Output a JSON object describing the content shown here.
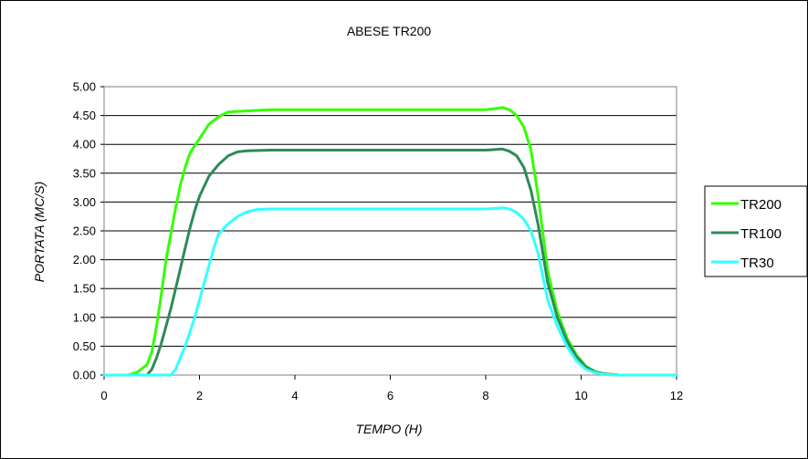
{
  "chart_data": {
    "type": "line",
    "title": "ABESE TR200",
    "xlabel": "TEMPO (H)",
    "ylabel": "PORTATA (MC/S)",
    "xlim": [
      0,
      12
    ],
    "ylim": [
      0,
      5
    ],
    "x_ticks": [
      "0",
      "2",
      "4",
      "6",
      "8",
      "10",
      "12"
    ],
    "y_ticks": [
      "0.00",
      "0.50",
      "1.00",
      "1.50",
      "2.00",
      "2.50",
      "3.00",
      "3.50",
      "4.00",
      "4.50",
      "5.00"
    ],
    "grid": "horizontal",
    "legend_position": "right",
    "series": [
      {
        "name": "TR200",
        "color": "#33ff00",
        "points": [
          [
            0,
            0
          ],
          [
            0.5,
            0
          ],
          [
            0.7,
            0.05
          ],
          [
            0.9,
            0.18
          ],
          [
            1.0,
            0.4
          ],
          [
            1.1,
            0.85
          ],
          [
            1.2,
            1.4
          ],
          [
            1.3,
            2.0
          ],
          [
            1.4,
            2.45
          ],
          [
            1.5,
            2.9
          ],
          [
            1.6,
            3.3
          ],
          [
            1.7,
            3.6
          ],
          [
            1.8,
            3.85
          ],
          [
            2.0,
            4.1
          ],
          [
            2.2,
            4.35
          ],
          [
            2.4,
            4.48
          ],
          [
            2.6,
            4.56
          ],
          [
            3.0,
            4.58
          ],
          [
            3.5,
            4.6
          ],
          [
            6.0,
            4.6
          ],
          [
            8.0,
            4.6
          ],
          [
            8.2,
            4.62
          ],
          [
            8.35,
            4.64
          ],
          [
            8.5,
            4.6
          ],
          [
            8.65,
            4.5
          ],
          [
            8.8,
            4.3
          ],
          [
            8.95,
            3.9
          ],
          [
            9.1,
            3.1
          ],
          [
            9.2,
            2.45
          ],
          [
            9.3,
            1.8
          ],
          [
            9.5,
            1.1
          ],
          [
            9.7,
            0.65
          ],
          [
            9.9,
            0.35
          ],
          [
            10.1,
            0.15
          ],
          [
            10.3,
            0.06
          ],
          [
            10.5,
            0.02
          ],
          [
            10.8,
            0
          ],
          [
            12,
            0
          ]
        ]
      },
      {
        "name": "TR100",
        "color": "#2e8b57",
        "points": [
          [
            0,
            0
          ],
          [
            0.9,
            0
          ],
          [
            1.0,
            0.1
          ],
          [
            1.1,
            0.3
          ],
          [
            1.2,
            0.55
          ],
          [
            1.3,
            0.85
          ],
          [
            1.4,
            1.15
          ],
          [
            1.5,
            1.5
          ],
          [
            1.6,
            1.85
          ],
          [
            1.7,
            2.2
          ],
          [
            1.8,
            2.55
          ],
          [
            1.9,
            2.85
          ],
          [
            2.0,
            3.1
          ],
          [
            2.2,
            3.45
          ],
          [
            2.4,
            3.65
          ],
          [
            2.6,
            3.8
          ],
          [
            2.8,
            3.87
          ],
          [
            3.0,
            3.89
          ],
          [
            3.5,
            3.9
          ],
          [
            6.0,
            3.9
          ],
          [
            8.0,
            3.9
          ],
          [
            8.2,
            3.91
          ],
          [
            8.35,
            3.92
          ],
          [
            8.5,
            3.88
          ],
          [
            8.65,
            3.8
          ],
          [
            8.8,
            3.6
          ],
          [
            8.95,
            3.2
          ],
          [
            9.1,
            2.6
          ],
          [
            9.2,
            2.1
          ],
          [
            9.3,
            1.6
          ],
          [
            9.5,
            1.0
          ],
          [
            9.7,
            0.6
          ],
          [
            9.9,
            0.32
          ],
          [
            10.1,
            0.14
          ],
          [
            10.3,
            0.05
          ],
          [
            10.5,
            0.02
          ],
          [
            10.8,
            0
          ],
          [
            12,
            0
          ]
        ]
      },
      {
        "name": "TR30",
        "color": "#33ffff",
        "points": [
          [
            0,
            0
          ],
          [
            1.4,
            0
          ],
          [
            1.5,
            0.1
          ],
          [
            1.6,
            0.3
          ],
          [
            1.7,
            0.5
          ],
          [
            1.8,
            0.75
          ],
          [
            1.9,
            1.0
          ],
          [
            2.0,
            1.3
          ],
          [
            2.1,
            1.6
          ],
          [
            2.2,
            1.9
          ],
          [
            2.3,
            2.2
          ],
          [
            2.4,
            2.45
          ],
          [
            2.6,
            2.62
          ],
          [
            2.8,
            2.75
          ],
          [
            3.0,
            2.83
          ],
          [
            3.2,
            2.87
          ],
          [
            3.5,
            2.88
          ],
          [
            6.0,
            2.88
          ],
          [
            8.0,
            2.88
          ],
          [
            8.2,
            2.89
          ],
          [
            8.35,
            2.9
          ],
          [
            8.5,
            2.88
          ],
          [
            8.65,
            2.82
          ],
          [
            8.8,
            2.7
          ],
          [
            8.95,
            2.5
          ],
          [
            9.1,
            2.1
          ],
          [
            9.2,
            1.7
          ],
          [
            9.3,
            1.3
          ],
          [
            9.5,
            0.85
          ],
          [
            9.7,
            0.5
          ],
          [
            9.9,
            0.25
          ],
          [
            10.1,
            0.1
          ],
          [
            10.3,
            0.04
          ],
          [
            10.5,
            0.01
          ],
          [
            10.8,
            0
          ],
          [
            12,
            0
          ]
        ]
      }
    ]
  }
}
